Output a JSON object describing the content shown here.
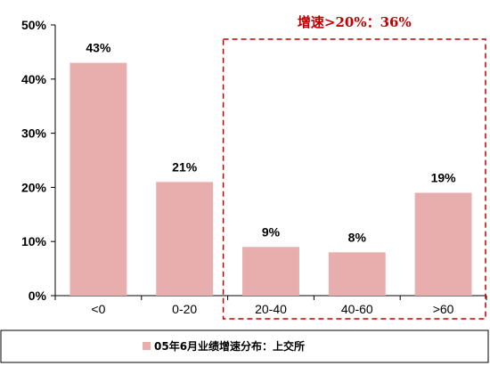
{
  "chart_data": {
    "type": "bar",
    "categories": [
      "<0",
      "0-20",
      "20-40",
      "40-60",
      ">60"
    ],
    "values": [
      43,
      21,
      9,
      8,
      19
    ],
    "data_labels": [
      "43%",
      "21%",
      "9%",
      "8%",
      "19%"
    ],
    "ylim": [
      0,
      50
    ],
    "yticks": [
      0,
      10,
      20,
      30,
      40,
      50
    ],
    "ytick_labels": [
      "0%",
      "10%",
      "20%",
      "30%",
      "40%",
      "50%"
    ],
    "title": "",
    "xlabel": "",
    "ylabel": "",
    "grid": false,
    "legend": {
      "position": "bottom",
      "entries": [
        {
          "name": "05年6月业绩增速分布：上交所"
        }
      ]
    },
    "annotation": {
      "text": "增速>20%：36%",
      "spans_categories": [
        "20-40",
        "40-60",
        ">60"
      ]
    },
    "colors": {
      "bar": "#e8aeae",
      "annotation": "#c00000",
      "axis": "#000000"
    }
  }
}
